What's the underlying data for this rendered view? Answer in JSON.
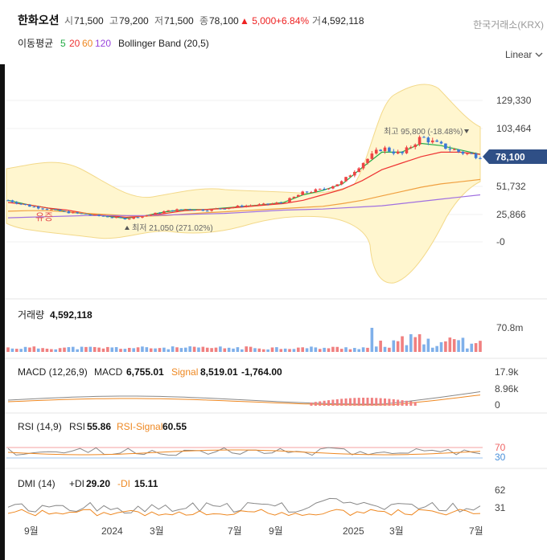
{
  "header": {
    "name": "한화오션",
    "open_label": "시",
    "open": "71,500",
    "high_label": "고",
    "high": "79,200",
    "low_label": "저",
    "low": "71,500",
    "close_label": "종",
    "close": "78,100",
    "change": "▲ 5,000",
    "change_pct": "+6.84%",
    "volume_label": "거",
    "volume": "4,592,118",
    "exchange": "한국거래소(KRX)"
  },
  "indicators": {
    "ma_label": "이동평균",
    "ma": [
      {
        "period": "5",
        "color": "#22aa44"
      },
      {
        "period": "20",
        "color": "#ee3333"
      },
      {
        "period": "60",
        "color": "#ee8822"
      },
      {
        "period": "120",
        "color": "#9944dd"
      }
    ],
    "bollinger": "Bollinger Band (20,5)",
    "scale": "Linear"
  },
  "price_chart": {
    "y_ticks": [
      "129,330",
      "103,464",
      "51,732",
      "25,866",
      "-0"
    ],
    "current_price": "78,100",
    "high_annotation": "최고 95,800 (-18.48%)",
    "low_annotation": "최저 21,050 (271.02%)",
    "event_label": "유증"
  },
  "volume_panel": {
    "label": "거래량",
    "value": "4,592,118",
    "y_tick": "70.8m"
  },
  "macd_panel": {
    "title": "MACD (12,26,9)",
    "macd_label": "MACD",
    "macd_value": "6,755.01",
    "signal_label": "Signal",
    "signal_value": "8,519.01",
    "hist_value": "-1,764.00",
    "y_ticks": [
      "17.9k",
      "8.96k",
      "0"
    ]
  },
  "rsi_panel": {
    "title": "RSI (14,9)",
    "rsi_label": "RSI",
    "rsi_value": "55.86",
    "signal_label": "RSI-Signal",
    "signal_value": "60.55",
    "y_ticks": [
      "70",
      "30"
    ]
  },
  "dmi_panel": {
    "title": "DMI (14)",
    "pdi_label": "+DI",
    "pdi_value": "29.20",
    "mdi_label": "-DI",
    "mdi_value": "15.11",
    "y_ticks": [
      "62",
      "31"
    ]
  },
  "x_axis": [
    "9월",
    "2024",
    "3월",
    "7월",
    "9월",
    "2025",
    "3월",
    "7월"
  ],
  "chart_data": {
    "type": "line",
    "title": "한화오션",
    "ylim": [
      0,
      129330
    ],
    "x_ticks": [
      "9월",
      "2024",
      "3월",
      "7월",
      "9월",
      "2025",
      "3월",
      "7월"
    ],
    "series": [
      {
        "name": "close",
        "values": [
          38000,
          33000,
          30000,
          27000,
          25000,
          23000,
          21050,
          24000,
          28000,
          30000,
          29000,
          31000,
          33000,
          34000,
          36000,
          45000,
          48000,
          55000,
          72000,
          86000,
          80000,
          95800,
          88000,
          82000,
          78100
        ]
      },
      {
        "name": "5",
        "values": [
          38000,
          34000,
          31000,
          27500,
          25500,
          23500,
          21500,
          24000,
          27500,
          29500,
          29500,
          31000,
          32500,
          34000,
          36000,
          43000,
          47000,
          53000,
          68000,
          82000,
          82000,
          90000,
          88000,
          84000,
          80000
        ]
      },
      {
        "name": "20",
        "values": [
          36000,
          34000,
          31000,
          29000,
          26000,
          24000,
          22500,
          23500,
          26000,
          28500,
          29500,
          30500,
          32000,
          33500,
          35000,
          38000,
          43000,
          48000,
          56000,
          66000,
          72000,
          78000,
          82000,
          82000,
          80000
        ]
      },
      {
        "name": "60",
        "values": [
          28000,
          28500,
          28500,
          27500,
          26000,
          25000,
          24000,
          23500,
          24000,
          25500,
          26500,
          27500,
          28500,
          29500,
          30500,
          31500,
          32500,
          35000,
          38000,
          42000,
          46000,
          50000,
          53000,
          55000,
          57000
        ]
      },
      {
        "name": "120",
        "values": [
          22000,
          22500,
          23000,
          23500,
          24000,
          24000,
          24000,
          24000,
          24500,
          25000,
          25500,
          26000,
          27000,
          28000,
          29000,
          29500,
          30000,
          31000,
          32000,
          33000,
          35000,
          37000,
          39000,
          41000,
          43000
        ]
      }
    ]
  }
}
